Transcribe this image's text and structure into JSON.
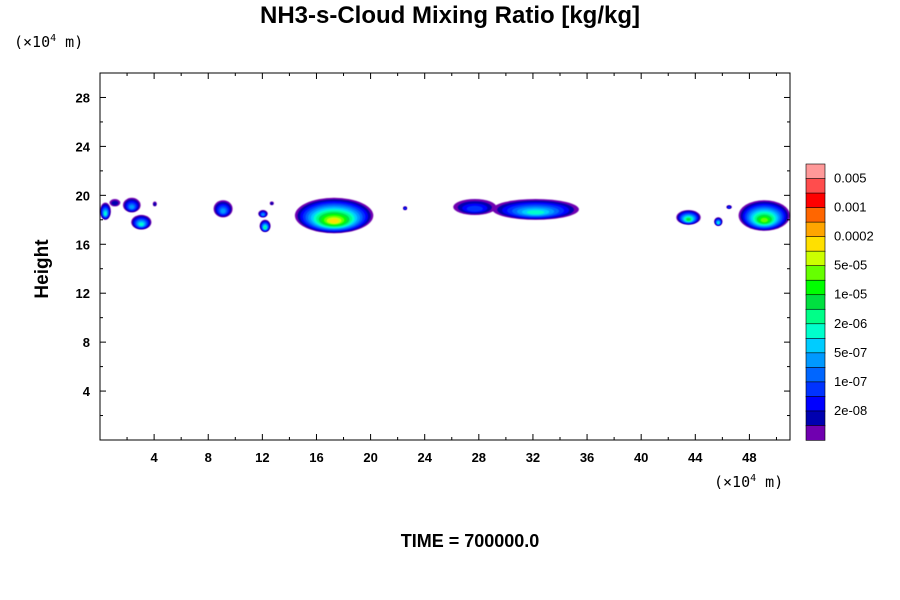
{
  "chart_data": {
    "type": "heatmap",
    "title": "NH3-s-Cloud Mixing Ratio [kg/kg]",
    "ylabel": "Height",
    "x_unit_prefix": "(×10",
    "unit_exp": "4",
    "unit_suffix": " m)",
    "footer": "TIME = 700000.0",
    "xlim": [
      0,
      51
    ],
    "ylim": [
      0,
      30
    ],
    "x_ticks": [
      4,
      8,
      12,
      16,
      20,
      24,
      28,
      32,
      36,
      40,
      44,
      48
    ],
    "x_tick_labels": [
      "4",
      "8",
      "12",
      "16",
      "20",
      "24",
      "28",
      "32",
      "36",
      "40",
      "44",
      "48"
    ],
    "y_ticks": [
      4,
      8,
      12,
      16,
      20,
      24,
      28
    ],
    "y_tick_labels": [
      "4",
      "8",
      "12",
      "16",
      "20",
      "24",
      "28"
    ],
    "colorbar": {
      "labels": [
        "0.005",
        "0.001",
        "0.0002",
        "5e-05",
        "1e-05",
        "2e-06",
        "5e-07",
        "1e-07",
        "2e-08"
      ],
      "colors": [
        "#ff9999",
        "#ff4d4d",
        "#ff0000",
        "#ff6600",
        "#ffa500",
        "#ffe000",
        "#ccff00",
        "#66ff00",
        "#00ff00",
        "#00e040",
        "#00ff88",
        "#00ffcc",
        "#00ccff",
        "#0099ff",
        "#0066ff",
        "#0033ff",
        "#0000ff",
        "#0000b0",
        "#7000b0"
      ]
    },
    "cloud_blobs": [
      {
        "x": [
          0.0,
          0.8
        ],
        "y": [
          18.0,
          19.4
        ],
        "peak": "2e-06"
      },
      {
        "x": [
          0.7,
          1.5
        ],
        "y": [
          19.1,
          19.7
        ],
        "peak": "2e-08"
      },
      {
        "x": [
          1.7,
          3.0
        ],
        "y": [
          18.6,
          19.8
        ],
        "peak": "5e-07"
      },
      {
        "x": [
          2.3,
          3.8
        ],
        "y": [
          17.2,
          18.4
        ],
        "peak": "2e-06"
      },
      {
        "x": [
          3.9,
          4.2
        ],
        "y": [
          19.1,
          19.5
        ],
        "peak": "2e-08"
      },
      {
        "x": [
          8.4,
          9.8
        ],
        "y": [
          18.2,
          19.6
        ],
        "peak": "5e-07"
      },
      {
        "x": [
          11.7,
          12.4
        ],
        "y": [
          18.2,
          18.8
        ],
        "peak": "5e-07"
      },
      {
        "x": [
          11.8,
          12.6
        ],
        "y": [
          17.0,
          18.0
        ],
        "peak": "5e-06"
      },
      {
        "x": [
          12.6,
          12.8
        ],
        "y": [
          19.2,
          19.5
        ],
        "peak": "2e-08"
      },
      {
        "x": [
          14.4,
          20.2
        ],
        "y": [
          16.9,
          19.8
        ],
        "peak": "0.0002"
      },
      {
        "x": [
          22.4,
          22.7
        ],
        "y": [
          18.8,
          19.1
        ],
        "peak": "1e-07"
      },
      {
        "x": [
          26.1,
          29.3
        ],
        "y": [
          18.4,
          19.7
        ],
        "peak": "1e-07"
      },
      {
        "x": [
          29.0,
          35.4
        ],
        "y": [
          18.0,
          19.7
        ],
        "peak": "2e-06"
      },
      {
        "x": [
          42.6,
          44.4
        ],
        "y": [
          17.6,
          18.8
        ],
        "peak": "1e-05"
      },
      {
        "x": [
          45.4,
          46.0
        ],
        "y": [
          17.5,
          18.2
        ],
        "peak": "2e-06"
      },
      {
        "x": [
          46.3,
          46.7
        ],
        "y": [
          18.9,
          19.2
        ],
        "peak": "1e-07"
      },
      {
        "x": [
          47.2,
          51.0
        ],
        "y": [
          17.1,
          19.6
        ],
        "peak": "5e-05"
      }
    ]
  }
}
